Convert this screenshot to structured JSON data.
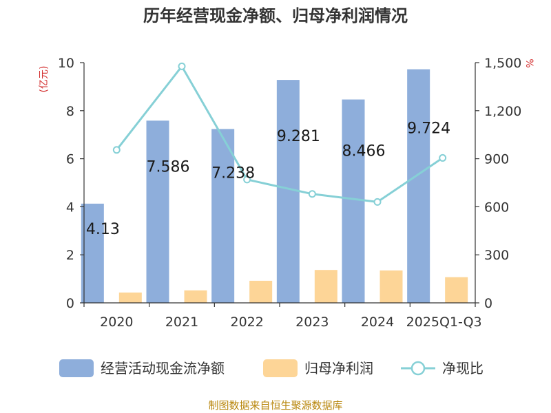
{
  "title": "历年经营现金净额、归母净利润情况",
  "left_unit": "(亿元)",
  "right_unit": "%",
  "source": "制图数据来自恒生聚源数据库",
  "colors": {
    "cash_flow": "#8eaedb",
    "net_profit": "#fdd597",
    "ratio": "#86d0d6",
    "axis": "#333333",
    "unit": "#d32f2f",
    "source": "#b8860b"
  },
  "chart_data": {
    "type": "bar",
    "categories": [
      "2020",
      "2021",
      "2022",
      "2023",
      "2024",
      "2025Q1-Q3"
    ],
    "series": [
      {
        "name": "经营活动现金流净额",
        "axis": "left",
        "type": "bar",
        "values": [
          4.13,
          7.586,
          7.238,
          9.281,
          8.466,
          9.724
        ],
        "labels": [
          "4.13",
          "7.586",
          "7.238",
          "9.281",
          "8.466",
          "9.724"
        ]
      },
      {
        "name": "归母净利润",
        "axis": "left",
        "type": "bar",
        "values": [
          0.43,
          0.52,
          0.92,
          1.37,
          1.35,
          1.07
        ]
      },
      {
        "name": "净现比",
        "axis": "right",
        "type": "line",
        "values": [
          955,
          1477,
          770,
          680,
          630,
          905
        ]
      }
    ],
    "y_left": {
      "min": 0,
      "max": 10,
      "ticks": [
        "0",
        "2",
        "4",
        "6",
        "8",
        "10"
      ]
    },
    "y_right": {
      "min": 0,
      "max": 1500,
      "ticks": [
        "0",
        "300",
        "600",
        "900",
        "1,200",
        "1,500"
      ]
    },
    "legend_position": "bottom",
    "grid": false
  }
}
